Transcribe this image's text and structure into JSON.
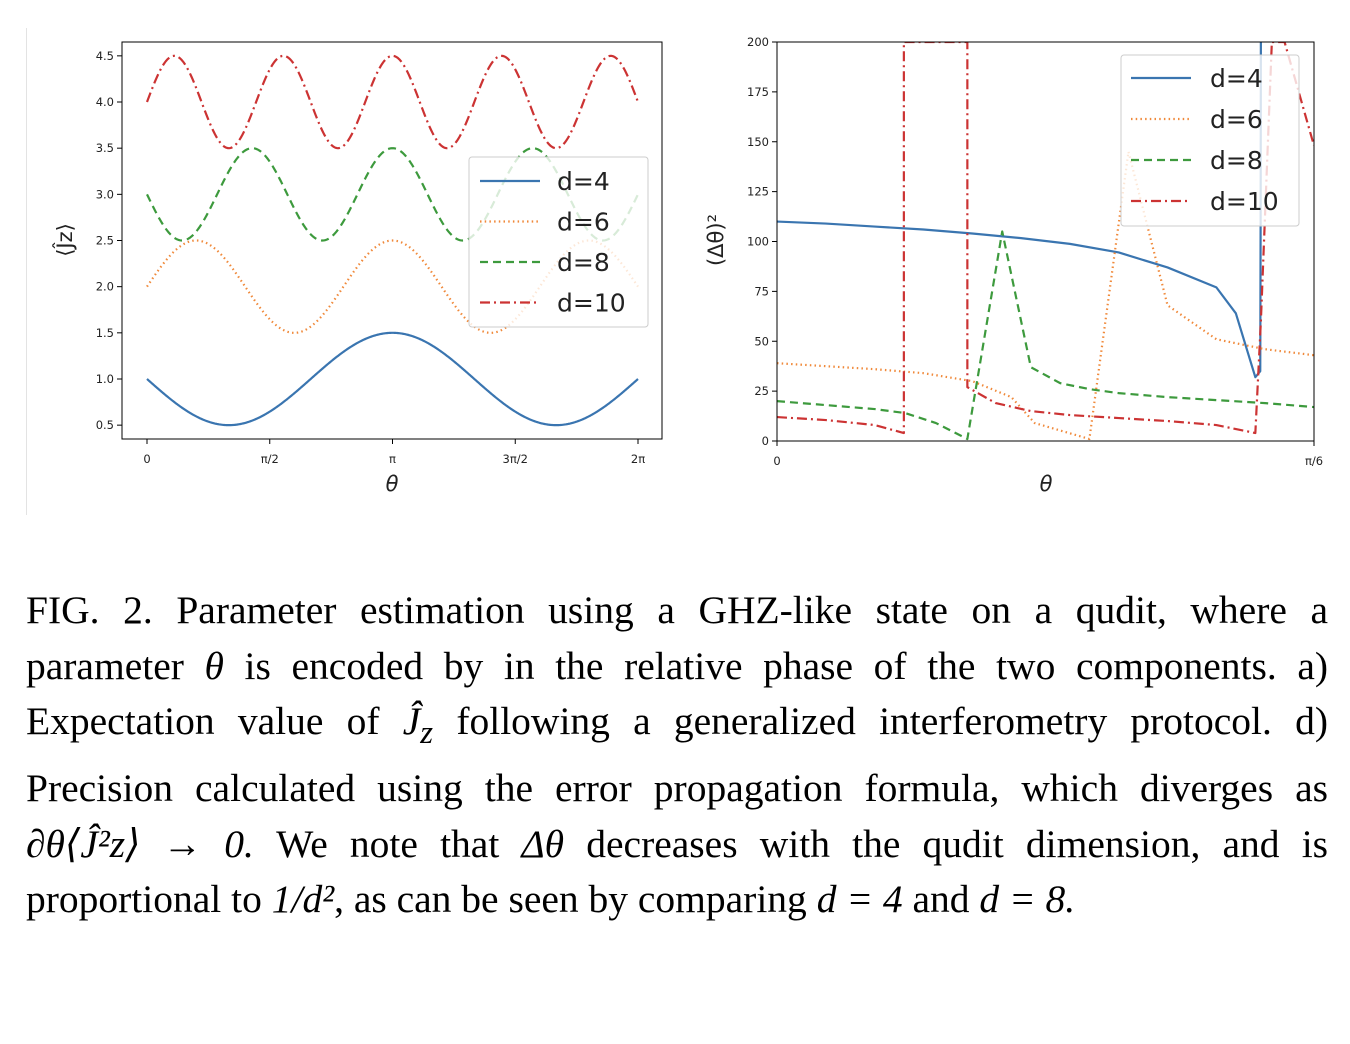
{
  "figure_label": "FIG. 2.",
  "caption_parts": {
    "p1": "Parameter estimation using a GHZ-like state on a qudit, where a parameter",
    "theta": "θ",
    "p2": "is encoded by in the relative phase of the two components.  a) Expectation value of",
    "jz": "Ĵ",
    "jz_sub": "z",
    "p3": "following a generalized interferometry protocol. d) Precision calculated using the error propagation formula, which diverges as",
    "deriv": "∂θ⟨Ĵ²z⟩ → 0.",
    "p4": "We note that",
    "dtheta": "Δθ",
    "p5": "decreases with the qudit dimension, and is proportional to",
    "frac": "1/d²",
    "p6": ", as can be seen by comparing",
    "eq1": "d = 4",
    "and": "and",
    "eq2": "d = 8."
  },
  "chart_data": [
    {
      "type": "line",
      "xlabel": "θ",
      "ylabel": "⟨Ĵz⟩",
      "xlim": [
        0,
        6.2832
      ],
      "ylim": [
        0.35,
        4.65
      ],
      "x_ticks": [
        {
          "value": 0,
          "label": "0"
        },
        {
          "value": 1.5708,
          "label": "π/2"
        },
        {
          "value": 3.1416,
          "label": "π"
        },
        {
          "value": 4.7124,
          "label": "3π/2"
        },
        {
          "value": 6.2832,
          "label": "2π"
        }
      ],
      "y_ticks": [
        {
          "value": 0.5,
          "label": "0.5"
        },
        {
          "value": 1.0,
          "label": "1.0"
        },
        {
          "value": 1.5,
          "label": "1.5"
        },
        {
          "value": 2.0,
          "label": "2.0"
        },
        {
          "value": 2.5,
          "label": "2.5"
        },
        {
          "value": 3.0,
          "label": "3.0"
        },
        {
          "value": 3.5,
          "label": "3.5"
        },
        {
          "value": 4.0,
          "label": "4.0"
        },
        {
          "value": 4.5,
          "label": "4.5"
        }
      ],
      "legend": "right",
      "grid": false,
      "series": [
        {
          "name": "d=4",
          "color": "#3a75b0",
          "dash": "solid",
          "center": 1.0,
          "amplitude": 0.5,
          "frequency": 3,
          "sign": -1
        },
        {
          "name": "d=6",
          "color": "#f0893a",
          "dash": "dotted",
          "center": 2.0,
          "amplitude": 0.5,
          "frequency": 5,
          "sign": 1
        },
        {
          "name": "d=8",
          "color": "#3d9a3d",
          "dash": "dashed",
          "center": 3.0,
          "amplitude": 0.5,
          "frequency": 7,
          "sign": -1
        },
        {
          "name": "d=10",
          "color": "#cc3333",
          "dash": "dashdot",
          "center": 4.0,
          "amplitude": 0.5,
          "frequency": 9,
          "sign": 1
        }
      ]
    },
    {
      "type": "line",
      "xlabel": "θ",
      "ylabel": "(Δθ)²",
      "xlim": [
        0,
        0.5236
      ],
      "ylim": [
        0,
        200
      ],
      "x_ticks": [
        {
          "value": 0,
          "label": "0"
        },
        {
          "value": 0.5236,
          "label": "π/6"
        }
      ],
      "y_ticks": [
        {
          "value": 0,
          "label": "0"
        },
        {
          "value": 25,
          "label": "25"
        },
        {
          "value": 50,
          "label": "50"
        },
        {
          "value": 75,
          "label": "75"
        },
        {
          "value": 100,
          "label": "100"
        },
        {
          "value": 125,
          "label": "125"
        },
        {
          "value": 150,
          "label": "150"
        },
        {
          "value": 175,
          "label": "175"
        },
        {
          "value": 200,
          "label": "200"
        }
      ],
      "legend": "top-right",
      "grid": false,
      "series": [
        {
          "name": "d=4",
          "color": "#3a75b0",
          "dash": "solid",
          "x": [
            0,
            0.0476,
            0.0952,
            0.1428,
            0.1904,
            0.238,
            0.2856,
            0.3332,
            0.3808,
            0.4284,
            0.4474,
            0.4664,
            0.4712,
            0.4716,
            0.4718
          ],
          "y": [
            110,
            109,
            107.5,
            106,
            104,
            101.7,
            98.8,
            94.5,
            87,
            77,
            64,
            32,
            35,
            120,
            200
          ]
        },
        {
          "name": "d=6",
          "color": "#f0893a",
          "dash": "dotted",
          "x": [
            0,
            0.0952,
            0.1428,
            0.1904,
            0.2285,
            0.2513,
            0.3046,
            0.3427,
            0.3808,
            0.4284,
            0.476,
            0.5236
          ],
          "y": [
            39,
            36,
            34,
            30,
            22,
            9,
            1,
            145,
            68,
            51,
            46,
            43
          ]
        },
        {
          "name": "d=8",
          "color": "#3d9a3d",
          "dash": "dashed",
          "x": [
            0,
            0.0476,
            0.0952,
            0.1249,
            0.155,
            0.1856,
            0.2196,
            0.2475,
            0.2761,
            0.3046,
            0.3332,
            0.3808,
            0.4284,
            0.476,
            0.5236
          ],
          "y": [
            20,
            18,
            16,
            14,
            9,
            1,
            105,
            37,
            29,
            26,
            24,
            22,
            20.5,
            19,
            17
          ]
        },
        {
          "name": "d=10",
          "color": "#cc3333",
          "dash": "dashdot",
          "x": [
            0,
            0.0476,
            0.0952,
            0.1237,
            0.1237,
            0.1237,
            0.1856,
            0.1856,
            0.1856,
            0.2132,
            0.2475,
            0.2856,
            0.3332,
            0.3808,
            0.4284,
            0.4664,
            0.4718,
            0.4825,
            0.4949,
            0.5236
          ],
          "y": [
            12,
            10.5,
            8,
            4,
            50,
            200,
            200,
            60,
            27,
            19,
            15,
            13,
            11.5,
            10,
            8,
            4,
            60,
            200,
            200,
            148
          ]
        }
      ]
    }
  ]
}
